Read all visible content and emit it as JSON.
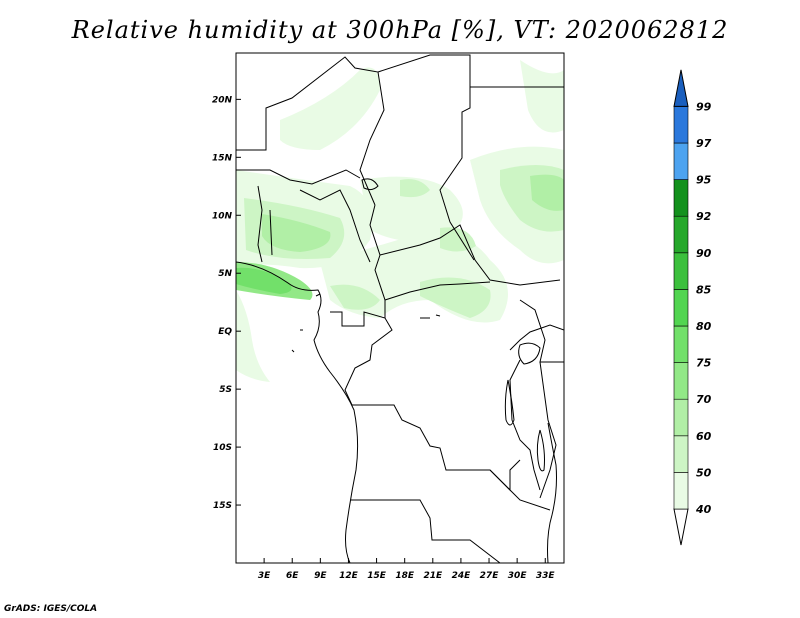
{
  "title": "Relative humidity at 300hPa [%], VT: 2020062812",
  "credit": "GrADS: IGES/COLA",
  "map": {
    "variable": "relative humidity",
    "level": "300hPa",
    "lon_range": [
      0,
      35
    ],
    "lat_range": [
      -20,
      24
    ],
    "lon_ticks": [
      {
        "value": 3,
        "label": "3E"
      },
      {
        "value": 6,
        "label": "6E"
      },
      {
        "value": 9,
        "label": "9E"
      },
      {
        "value": 12,
        "label": "12E"
      },
      {
        "value": 15,
        "label": "15E"
      },
      {
        "value": 18,
        "label": "18E"
      },
      {
        "value": 21,
        "label": "21E"
      },
      {
        "value": 24,
        "label": "24E"
      },
      {
        "value": 27,
        "label": "27E"
      },
      {
        "value": 30,
        "label": "30E"
      },
      {
        "value": 33,
        "label": "33E"
      }
    ],
    "lat_ticks": [
      {
        "value": 20,
        "label": "20N"
      },
      {
        "value": 15,
        "label": "15N"
      },
      {
        "value": 10,
        "label": "10N"
      },
      {
        "value": 5,
        "label": "5N"
      },
      {
        "value": 0,
        "label": "EQ"
      },
      {
        "value": -5,
        "label": "5S"
      },
      {
        "value": -10,
        "label": "10S"
      },
      {
        "value": -15,
        "label": "15S"
      }
    ]
  },
  "colorbar": {
    "levels": [
      "40",
      "50",
      "60",
      "70",
      "75",
      "80",
      "85",
      "90",
      "92",
      "95",
      "97",
      "99"
    ],
    "colors": [
      "#ffffff",
      "#e9fbe5",
      "#cdf5c5",
      "#b1efa6",
      "#92e887",
      "#72e06a",
      "#52d551",
      "#3cc03d",
      "#26a82b",
      "#13911d",
      "#4da3f0",
      "#2b78dc",
      "#1a5fbe"
    ]
  }
}
